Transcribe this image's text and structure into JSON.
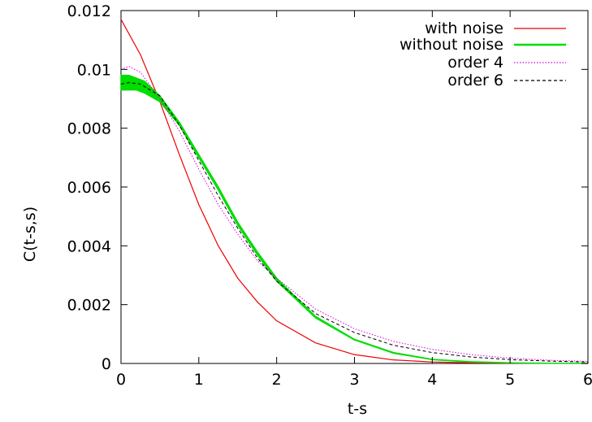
{
  "chart_data": {
    "type": "line",
    "title": "",
    "xlabel": "t-s",
    "ylabel": "C(t-s,s)",
    "xlim": [
      0,
      6
    ],
    "ylim": [
      0,
      0.012
    ],
    "x_ticks": [
      "0",
      "1",
      "2",
      "3",
      "4",
      "5",
      "6"
    ],
    "y_ticks": [
      "0",
      "0.002",
      "0.004",
      "0.006",
      "0.008",
      "0.01",
      "0.012"
    ],
    "grid": false,
    "legend_position": "top-right",
    "series": [
      {
        "name": "with noise",
        "color": "#ee0000",
        "style": "solid",
        "x": [
          0,
          0.25,
          0.5,
          0.75,
          1.0,
          1.25,
          1.5,
          1.75,
          2.0,
          2.5,
          3.0,
          3.5,
          4.0,
          4.5,
          5.0,
          5.5,
          6.0
        ],
        "y": [
          0.0117,
          0.0105,
          0.0089,
          0.0071,
          0.0054,
          0.004,
          0.0029,
          0.0021,
          0.00145,
          0.0007,
          0.0003,
          0.00012,
          5e-05,
          2e-05,
          1e-05,
          5e-06,
          2e-06
        ]
      },
      {
        "name": "without noise",
        "color": "#00dd00",
        "style": "band",
        "x": [
          0,
          0.1,
          0.2,
          0.3,
          0.5,
          0.75,
          1.0,
          1.25,
          1.5,
          1.75,
          2.0,
          2.5,
          3.0,
          3.5,
          4.0,
          4.5,
          5.0,
          5.5,
          6.0
        ],
        "y_low": [
          0.0093,
          0.0093,
          0.0093,
          0.0092,
          0.0089,
          0.0081,
          0.007,
          0.0059,
          0.0047,
          0.0037,
          0.0028,
          0.00155,
          0.0008,
          0.00035,
          0.00013,
          5e-05,
          2e-05,
          7e-06,
          2e-06
        ],
        "y_high": [
          0.0098,
          0.0098,
          0.0097,
          0.0096,
          0.0091,
          0.0082,
          0.0071,
          0.006,
          0.0048,
          0.0038,
          0.0029,
          0.0016,
          0.00082,
          0.00037,
          0.00014,
          6e-05,
          2e-05,
          8e-06,
          3e-06
        ]
      },
      {
        "name": "order 4",
        "color": "#dd00dd",
        "style": "dotted",
        "x": [
          0,
          0.1,
          0.25,
          0.5,
          0.75,
          1.0,
          1.25,
          1.5,
          1.75,
          2.0,
          2.5,
          3.0,
          3.5,
          4.0,
          4.5,
          5.0,
          5.5,
          6.0
        ],
        "y": [
          0.01,
          0.0101,
          0.0099,
          0.009,
          0.0079,
          0.0066,
          0.0054,
          0.0044,
          0.0035,
          0.0029,
          0.00185,
          0.00118,
          0.00075,
          0.00048,
          0.0003,
          0.00018,
          0.00011,
          7e-05
        ]
      },
      {
        "name": "order 6",
        "color": "#000000",
        "style": "dashed",
        "x": [
          0,
          0.1,
          0.25,
          0.5,
          0.75,
          1.0,
          1.25,
          1.5,
          1.75,
          2.0,
          2.5,
          3.0,
          3.5,
          4.0,
          4.5,
          5.0,
          5.5,
          6.0
        ],
        "y": [
          0.0095,
          0.00955,
          0.0095,
          0.0091,
          0.0081,
          0.0069,
          0.0057,
          0.0046,
          0.0036,
          0.0028,
          0.0017,
          0.00105,
          0.00062,
          0.00037,
          0.00022,
          0.00013,
          8e-05,
          5e-05
        ]
      }
    ]
  }
}
